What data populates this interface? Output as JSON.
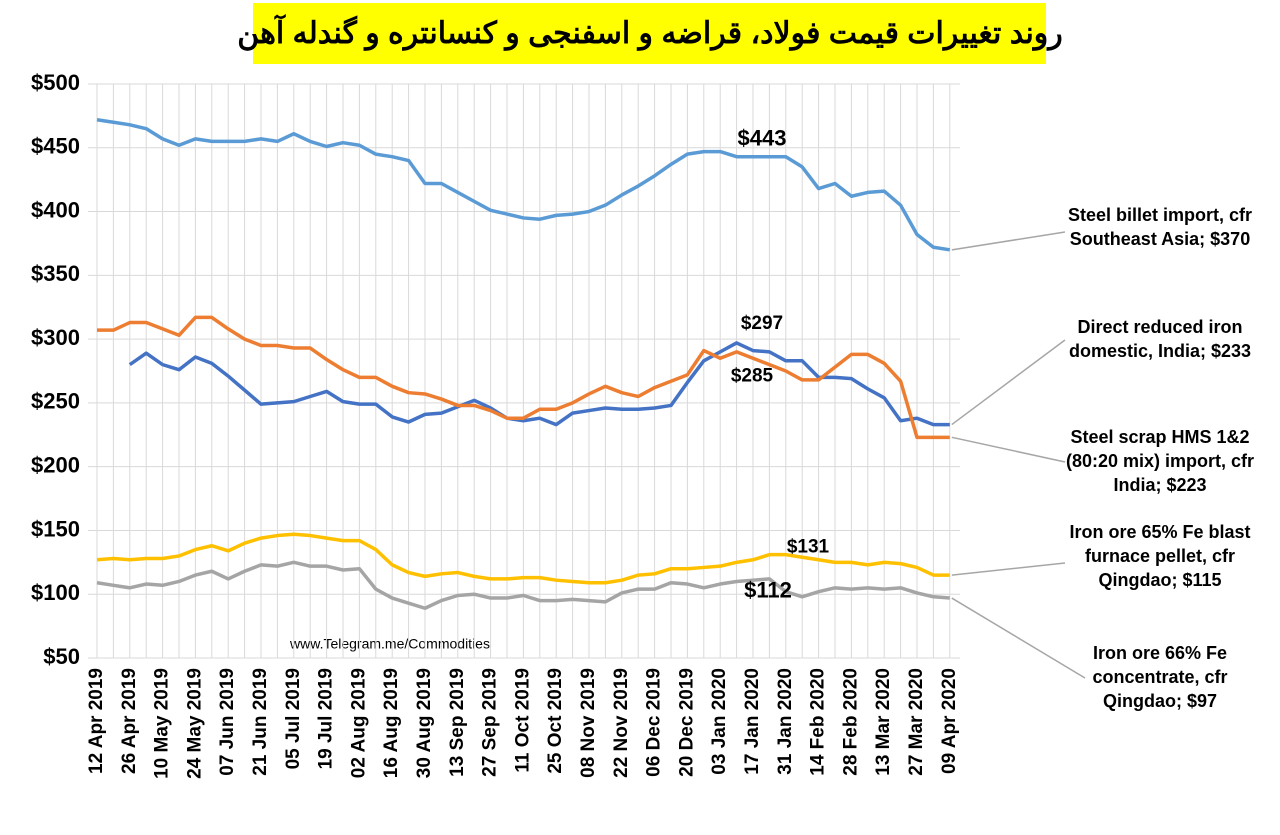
{
  "chart_data": {
    "type": "line",
    "title": "روند تغییرات قیمت فولاد، قراضه و اسفنجی و کنسانتره و گندله آهن",
    "watermark": "www.Telegram.me/Commodities",
    "categories": [
      "12 Apr 2019",
      null,
      "26 Apr 2019",
      null,
      "10 May 2019",
      null,
      "24 May 2019",
      null,
      "07 Jun 2019",
      null,
      "21 Jun 2019",
      null,
      "05 Jul 2019",
      null,
      "19 Jul 2019",
      null,
      "02 Aug 2019",
      null,
      "16 Aug 2019",
      null,
      "30 Aug 2019",
      null,
      "13 Sep 2019",
      null,
      "27 Sep 2019",
      null,
      "11 Oct 2019",
      null,
      "25 Oct 2019",
      null,
      "08 Nov 2019",
      null,
      "22 Nov 2019",
      null,
      "06 Dec 2019",
      null,
      "20 Dec 2019",
      null,
      "03 Jan 2020",
      null,
      "17 Jan 2020",
      null,
      "31 Jan 2020",
      null,
      "14 Feb 2020",
      null,
      "28 Feb 2020",
      null,
      "13 Mar 2020",
      null,
      "27 Mar 2020",
      null,
      "09 Apr 2020"
    ],
    "series": [
      {
        "name": "Steel billet import, cfr Southeast Asia;  $370",
        "color": "#5b9bd5",
        "values": [
          472,
          470,
          468,
          465,
          457,
          452,
          457,
          455,
          455,
          455,
          457,
          455,
          461,
          455,
          451,
          454,
          452,
          445,
          443,
          440,
          422,
          422,
          415,
          408,
          401,
          398,
          395,
          394,
          397,
          398,
          400,
          405,
          413,
          420,
          428,
          437,
          445,
          447,
          447,
          443,
          443,
          443,
          443,
          435,
          418,
          422,
          412,
          415,
          416,
          405,
          382,
          372,
          370
        ]
      },
      {
        "name": "Direct reduced iron domestic, India; $233",
        "color": "#4472c4",
        "values": [
          null,
          null,
          280,
          289,
          280,
          276,
          286,
          281,
          271,
          260,
          249,
          250,
          251,
          255,
          259,
          251,
          249,
          249,
          239,
          235,
          241,
          242,
          247,
          252,
          246,
          238,
          236,
          238,
          233,
          242,
          244,
          246,
          245,
          245,
          246,
          248,
          266,
          283,
          290,
          297,
          291,
          290,
          283,
          283,
          270,
          270,
          269,
          261,
          254,
          236,
          238,
          233,
          233
        ]
      },
      {
        "name": "Steel scrap HMS 1&2 (80:20 mix) import, cfr India; $223",
        "color": "#ed7d31",
        "values": [
          307,
          307,
          313,
          313,
          308,
          303,
          317,
          317,
          308,
          300,
          295,
          295,
          293,
          293,
          284,
          276,
          270,
          270,
          263,
          258,
          257,
          253,
          248,
          248,
          244,
          238,
          238,
          245,
          245,
          250,
          257,
          263,
          258,
          255,
          262,
          267,
          272,
          291,
          285,
          290,
          285,
          280,
          275,
          268,
          268,
          278,
          288,
          288,
          281,
          267,
          223,
          223,
          223
        ]
      },
      {
        "name": "Iron ore 65% Fe blast furnace pellet, cfr Qingdao; $115",
        "color": "#ffc000",
        "values": [
          127,
          128,
          127,
          128,
          128,
          130,
          135,
          138,
          134,
          140,
          144,
          146,
          147,
          146,
          144,
          142,
          142,
          135,
          123,
          117,
          114,
          116,
          117,
          114,
          112,
          112,
          113,
          113,
          111,
          110,
          109,
          109,
          111,
          115,
          116,
          120,
          120,
          121,
          122,
          125,
          127,
          131,
          131,
          129,
          127,
          125,
          125,
          123,
          125,
          124,
          121,
          115,
          115
        ]
      },
      {
        "name": "Iron ore 66% Fe concentrate, cfr Qingdao; $97",
        "color": "#a5a5a5",
        "values": [
          109,
          107,
          105,
          108,
          107,
          110,
          115,
          118,
          112,
          118,
          123,
          122,
          125,
          122,
          122,
          119,
          120,
          104,
          97,
          93,
          89,
          95,
          99,
          100,
          97,
          97,
          99,
          95,
          95,
          96,
          95,
          94,
          101,
          104,
          104,
          109,
          108,
          105,
          108,
          110,
          111,
          112,
          102,
          98,
          102,
          105,
          104,
          105,
          104,
          105,
          101,
          98,
          97
        ]
      }
    ],
    "annotations": [
      {
        "text": "$443",
        "value": 443
      },
      {
        "text": "$297",
        "value": 297
      },
      {
        "text": "$285",
        "value": 285
      },
      {
        "text": "$131",
        "value": 131
      },
      {
        "text": "$112",
        "value": 112
      }
    ],
    "ylim": [
      50,
      500
    ],
    "yticks": [
      {
        "value": 50,
        "label": "$50"
      },
      {
        "value": 100,
        "label": "$100"
      },
      {
        "value": 150,
        "label": "$150"
      },
      {
        "value": 200,
        "label": "$200"
      },
      {
        "value": 250,
        "label": "$250"
      },
      {
        "value": 300,
        "label": "$300"
      },
      {
        "value": 350,
        "label": "$350"
      },
      {
        "value": 400,
        "label": "$400"
      },
      {
        "value": 450,
        "label": "$450"
      },
      {
        "value": 500,
        "label": "$500"
      }
    ],
    "grid": true
  }
}
